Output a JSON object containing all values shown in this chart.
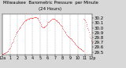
{
  "title": "Milwaukee  Barometric Pressure  per Minute",
  "title2": "(24 Hours)",
  "bg_color": "#d8d8d8",
  "plot_bg": "#ffffff",
  "line_color": "#ff0000",
  "grid_color": "#aaaaaa",
  "text_color": "#000000",
  "ylim": [
    29.45,
    30.28
  ],
  "yticks": [
    29.5,
    29.6,
    29.7,
    29.8,
    29.9,
    30.0,
    30.1,
    30.2
  ],
  "ytick_labels": [
    "29.5",
    "29.6",
    "29.7",
    "29.8",
    "29.9",
    "30.0",
    "30.1",
    "30.2"
  ],
  "y_values": [
    29.46,
    29.46,
    29.47,
    29.47,
    29.48,
    29.49,
    29.5,
    29.51,
    29.52,
    29.53,
    29.55,
    29.57,
    29.59,
    29.62,
    29.65,
    29.68,
    29.71,
    29.74,
    29.77,
    29.8,
    29.83,
    29.86,
    29.89,
    29.91,
    29.93,
    29.95,
    29.97,
    29.99,
    30.01,
    30.03,
    30.05,
    30.07,
    30.09,
    30.11,
    30.13,
    30.14,
    30.15,
    30.16,
    30.17,
    30.17,
    30.18,
    30.18,
    30.19,
    30.19,
    30.2,
    30.2,
    30.2,
    30.21,
    30.21,
    30.21,
    30.22,
    30.22,
    30.22,
    30.22,
    30.22,
    30.21,
    30.2,
    30.18,
    30.16,
    30.13,
    30.1,
    30.07,
    30.04,
    30.02,
    30.01,
    30.01,
    30.01,
    30.02,
    30.03,
    30.04,
    30.06,
    30.08,
    30.1,
    30.12,
    30.13,
    30.14,
    30.15,
    30.16,
    30.17,
    30.18,
    30.18,
    30.18,
    30.18,
    30.18,
    30.17,
    30.16,
    30.15,
    30.14,
    30.13,
    30.12,
    30.11,
    30.09,
    30.08,
    30.06,
    30.04,
    30.02,
    30.0,
    29.97,
    29.95,
    29.93,
    29.91,
    29.89,
    29.87,
    29.85,
    29.83,
    29.82,
    29.81,
    29.8,
    29.79,
    29.78,
    29.76,
    29.75,
    29.73,
    29.72,
    29.7,
    29.68,
    29.67,
    29.65,
    29.63,
    29.62,
    29.61,
    29.6,
    29.59,
    29.58,
    29.57,
    29.56,
    29.55,
    29.54,
    29.53,
    29.52,
    30.18,
    30.17,
    30.15,
    30.12,
    30.08,
    30.04,
    30.0,
    29.96,
    29.91,
    29.87,
    29.82,
    29.78,
    29.73,
    29.69
  ],
  "n_points": 144,
  "xlim": [
    0,
    143
  ],
  "marker_size": 0.9,
  "font_size": 4.0,
  "title_font_size": 4.0,
  "xtick_positions": [
    0,
    12,
    24,
    36,
    48,
    60,
    72,
    84,
    96,
    108,
    120,
    132,
    143
  ],
  "xtick_labels": [
    "12a",
    "1",
    "2",
    "3",
    "4",
    "5",
    "6",
    "7",
    "8",
    "9",
    "10",
    "11",
    "12p"
  ]
}
